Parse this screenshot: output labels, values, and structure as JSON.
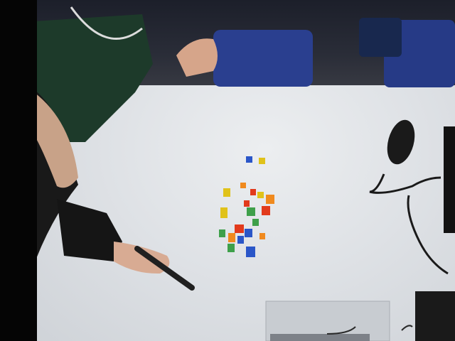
{
  "scene": {
    "description_hidden": "",
    "colors": {
      "table": "#dfe2e6",
      "pieces": [
        "#e0c21a",
        "#e23a1c",
        "#2a56c8",
        "#3ea04a",
        "#f08a1e"
      ]
    }
  }
}
